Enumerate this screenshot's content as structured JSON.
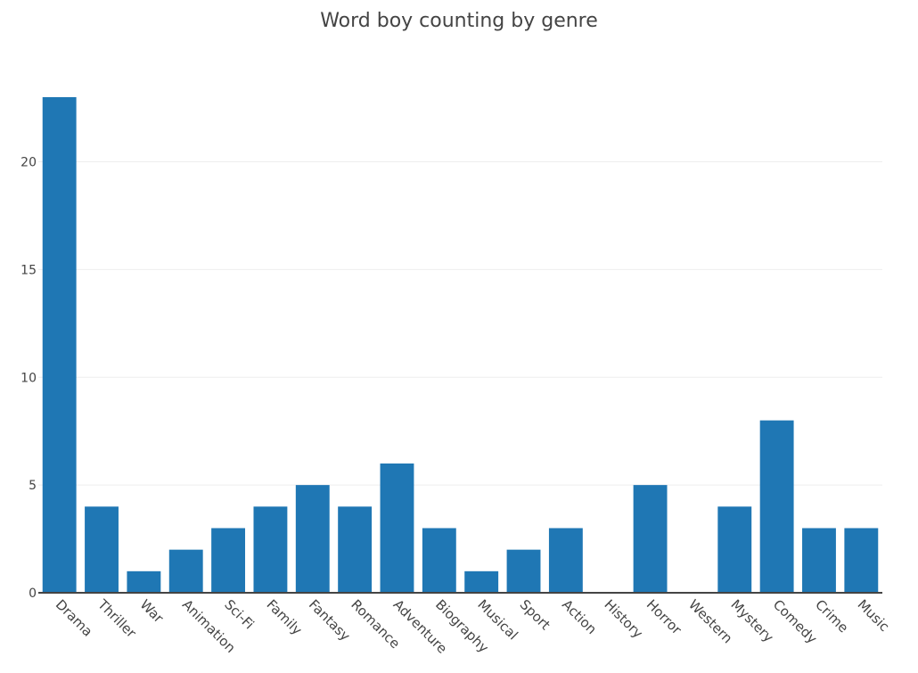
{
  "chart_data": {
    "type": "bar",
    "title": "Word boy counting by genre",
    "categories": [
      "Drama",
      "Thriller",
      "War",
      "Animation",
      "Sci-Fi",
      "Family",
      "Fantasy",
      "Romance",
      "Adventure",
      "Biography",
      "Musical",
      "Sport",
      "Action",
      "History",
      "Horror",
      "Western",
      "Mystery",
      "Comedy",
      "Crime",
      "Music"
    ],
    "values": [
      23,
      4,
      1,
      2,
      3,
      4,
      5,
      4,
      6,
      3,
      1,
      2,
      3,
      0,
      5,
      0,
      4,
      8,
      3,
      3
    ],
    "xlabel": "",
    "ylabel": "",
    "ylim": [
      0,
      24.2
    ],
    "yticks": [
      0,
      5,
      10,
      15,
      20
    ],
    "bar_color": "#1f77b4",
    "grid": true,
    "legend": "none"
  }
}
